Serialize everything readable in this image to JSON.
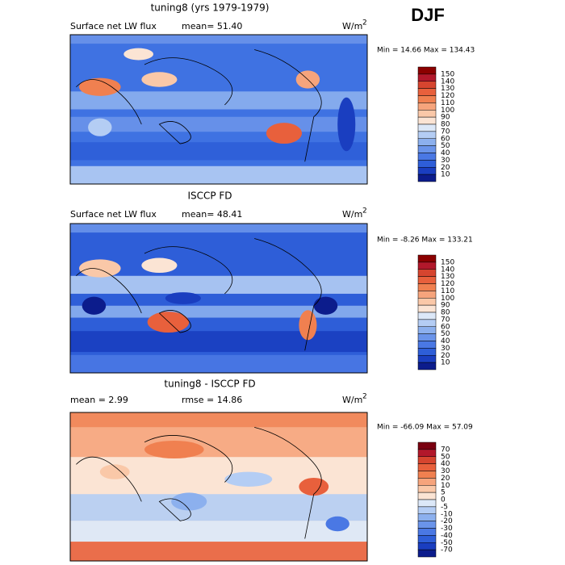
{
  "header": {
    "season": "DJF"
  },
  "panels": [
    {
      "title": "tuning8 (yrs 1979-1979)",
      "left_label": "Surface net LW flux",
      "stat": "mean=  51.40",
      "units": "W/m",
      "units_exp": "2",
      "min_max": "Min =  14.66 Max = 134.43",
      "colorbar": [
        "150",
        "140",
        "130",
        "120",
        "110",
        "100",
        "90",
        "80",
        "70",
        "60",
        "50",
        "40",
        "30",
        "20",
        "10"
      ]
    },
    {
      "title": "ISCCP FD",
      "left_label": "Surface net LW flux",
      "stat": "mean=  48.41",
      "units": "W/m",
      "units_exp": "2",
      "min_max": "Min =  -8.26 Max = 133.21",
      "colorbar": [
        "150",
        "140",
        "130",
        "120",
        "110",
        "100",
        "90",
        "80",
        "70",
        "60",
        "50",
        "40",
        "30",
        "20",
        "10"
      ]
    },
    {
      "title": "tuning8 - ISCCP FD",
      "left_label": "mean =   2.99",
      "stat": "rmse =  14.86",
      "units": "W/m",
      "units_exp": "2",
      "min_max": "Min = -66.09 Max =  57.09",
      "colorbar": [
        "70",
        "50",
        "40",
        "30",
        "20",
        "10",
        "5",
        "0",
        "-5",
        "-10",
        "-20",
        "-30",
        "-40",
        "-50",
        "-70"
      ]
    }
  ]
}
